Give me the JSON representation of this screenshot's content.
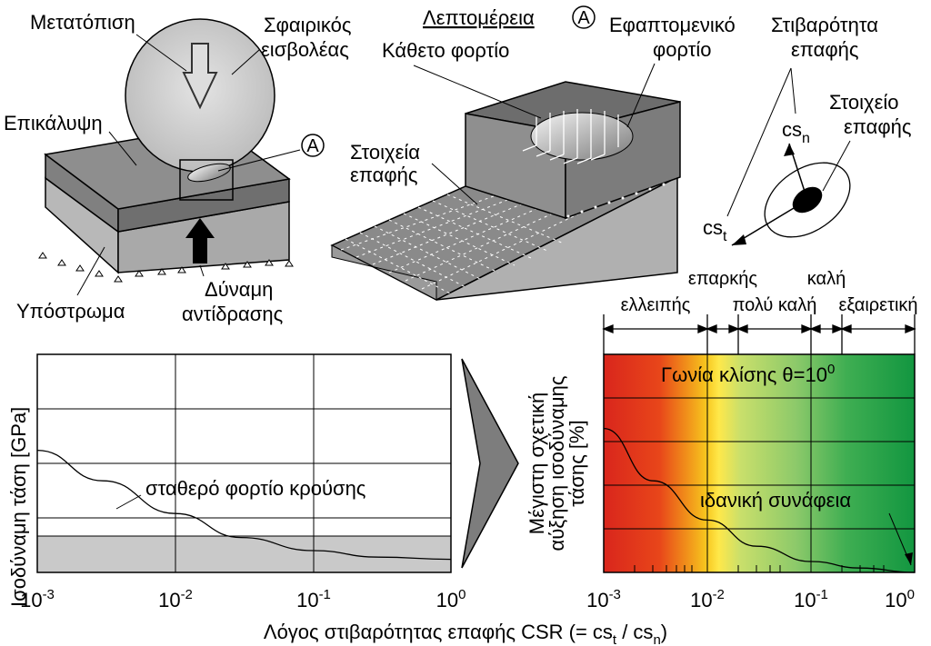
{
  "top_left": {
    "displacement": "Μετατόπιση",
    "indenter_line1": "Σφαιρικός",
    "indenter_line2": "εισβολέας",
    "coating": "Επικάλυψη",
    "detail_marker": "A",
    "substrate": "Υπόστρωμα",
    "reaction_line1": "Δύναμη",
    "reaction_line2": "αντίδρασης"
  },
  "top_middle": {
    "detail_title": "Λεπτομέρεια",
    "detail_marker": "A",
    "normal_load": "Κάθετο φορτίο",
    "tangential_line1": "Εφαπτομενικό",
    "tangential_line2": "φορτίο",
    "contact_elements_line1": "Στοιχεία",
    "contact_elements_line2": "επαφής"
  },
  "top_right": {
    "stiffness_line1": "Στιβαρότητα",
    "stiffness_line2": "επαφής",
    "csn": "cs",
    "csn_sub": "n",
    "cst": "cs",
    "cst_sub": "t",
    "element_line1": "Στοιχείο",
    "element_line2": "επαφής"
  },
  "left_chart": {
    "ylabel": "Ισοδύναμη τάση [GPa]",
    "curve_label": "σταθερό φορτίο κρούσης"
  },
  "right_chart": {
    "ylabel_line1": "Μέγιστη σχετική",
    "ylabel_line2": "αύξηση ισοδύναμης",
    "ylabel_line3": "τάσης [%]",
    "angle_label": "Γωνία κλίσης θ=10",
    "angle_sup": "0",
    "ideal_label": "ιδανική συνάφεια",
    "ranges": [
      {
        "label": "ελλειπής"
      },
      {
        "label": "επαρκής"
      },
      {
        "label": "πολύ καλή"
      },
      {
        "label": "καλή"
      },
      {
        "label": "εξαιρετική"
      }
    ]
  },
  "xlabel": "Λόγος στιβαρότητας επαφής CSR (= cs",
  "xlabel_sub1": "t",
  "xlabel_mid": " / cs",
  "xlabel_sub2": "n",
  "xlabel_end": ")",
  "x_ticks": [
    {
      "base": "10",
      "exp": "-3"
    },
    {
      "base": "10",
      "exp": "-2"
    },
    {
      "base": "10",
      "exp": "-1"
    },
    {
      "base": "10",
      "exp": "0"
    }
  ],
  "chart_data": [
    {
      "type": "line",
      "xscale": "log",
      "xlim": [
        0.001,
        1
      ],
      "series": [
        {
          "name": "σταθερό φορτίο κρούσης",
          "x": [
            0.001,
            0.003,
            0.01,
            0.03,
            0.1,
            0.3,
            1
          ],
          "y_relative": [
            0.56,
            0.42,
            0.27,
            0.16,
            0.1,
            0.07,
            0.06
          ]
        }
      ],
      "xlabel": "Λόγος στιβαρότητας επαφής CSR (= cst / csn)",
      "ylabel": "Ισοδύναμη τάση [GPa]",
      "grid": true
    },
    {
      "type": "line",
      "xscale": "log",
      "xlim": [
        0.001,
        1
      ],
      "series": [
        {
          "name": "Γωνία κλίσης θ=10°",
          "x": [
            0.001,
            0.003,
            0.01,
            0.03,
            0.1,
            0.3,
            1
          ],
          "y_relative": [
            0.66,
            0.42,
            0.24,
            0.12,
            0.05,
            0.02,
            0.0
          ]
        }
      ],
      "ylabel": "Μέγιστη σχετική αύξηση ισοδύναμης τάσης [%]",
      "grid": true,
      "annotations": [
        "Γωνία κλίσης θ=10°",
        "ιδανική συνάφεια"
      ]
    }
  ]
}
